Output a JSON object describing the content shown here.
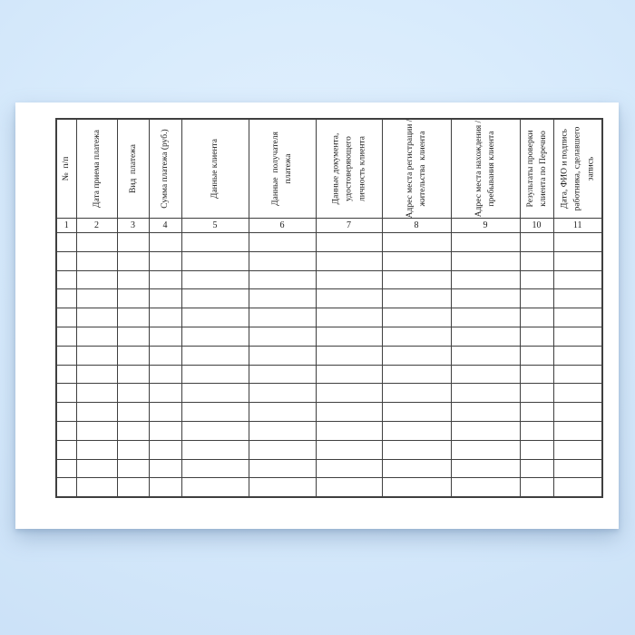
{
  "theme": {
    "background_center": "#e3f1fe",
    "background_edge": "#cbe1f7",
    "paper_color": "#ffffff",
    "line_color": "#3f3f3f",
    "text_color": "#1c1c1c"
  },
  "document": {
    "kind": "blank payment register journal form",
    "language": "ru"
  },
  "table": {
    "columns": [
      {
        "number": "1",
        "header": "№  п/п"
      },
      {
        "number": "2",
        "header": "Дата приема платежа"
      },
      {
        "number": "3",
        "header": "Вид  платежа"
      },
      {
        "number": "4",
        "header": "Сумма платежа (руб.)"
      },
      {
        "number": "5",
        "header": "Данные клиента"
      },
      {
        "number": "6",
        "header": "Данные  получателя\nплатежа"
      },
      {
        "number": "7",
        "header": "Данные документа,\nудостоверяющего\nличность клиента"
      },
      {
        "number": "8",
        "header": "Адрес места регистрации /\nжительства  клиента"
      },
      {
        "number": "9",
        "header": "Адрес места нахождения /\nпребывания клиента"
      },
      {
        "number": "10",
        "header": "Результаты проверки\nклиента по Перечню"
      },
      {
        "number": "11",
        "header": "Дата, ФИО и подпись\nработника, сделавшего\nзапись"
      }
    ],
    "empty_row_count": 14
  }
}
